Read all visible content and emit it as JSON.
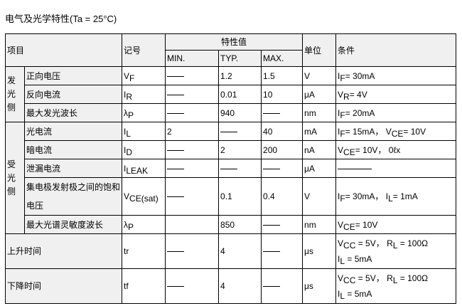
{
  "title": "电气及光学特性(Ta = 25°C)",
  "header": {
    "item": "项目",
    "symbol": "记号",
    "characteristic": "特性值",
    "min": "MIN.",
    "typ": "TYP.",
    "max": "MAX.",
    "unit": "单位",
    "condition": "条件"
  },
  "groups": [
    {
      "label": "发光侧",
      "rows": [
        {
          "item": "正向电压",
          "symbol": [
            {
              "t": "V"
            },
            {
              "s": "F"
            }
          ],
          "min": "—",
          "typ": "1.2",
          "max": "1.5",
          "unit": "V",
          "cond": [
            [
              {
                "t": "I"
              },
              {
                "s": "F"
              },
              {
                "t": "= 30mA"
              }
            ]
          ]
        },
        {
          "item": "反向电流",
          "symbol": [
            {
              "t": "I"
            },
            {
              "s": "R"
            }
          ],
          "min": "—",
          "typ": "0.01",
          "max": "10",
          "unit": "μA",
          "cond": [
            [
              {
                "t": "V"
              },
              {
                "s": "R"
              },
              {
                "t": "= 4V"
              }
            ]
          ]
        },
        {
          "item": "最大发光波长",
          "symbol": [
            {
              "t": "λ"
            },
            {
              "s": "P"
            }
          ],
          "min": "—",
          "typ": "940",
          "max": "—",
          "unit": "nm",
          "cond": [
            [
              {
                "t": "I"
              },
              {
                "s": "F"
              },
              {
                "t": "= 20mA"
              }
            ]
          ]
        }
      ]
    },
    {
      "label": "受光侧",
      "rows": [
        {
          "item": "光电流",
          "symbol": [
            {
              "t": "I"
            },
            {
              "s": "L"
            }
          ],
          "min": "2",
          "typ": "—",
          "max": "40",
          "unit": "mA",
          "cond": [
            [
              {
                "t": "I"
              },
              {
                "s": "F"
              },
              {
                "t": "= 15mA，  V"
              },
              {
                "s": "CE"
              },
              {
                "t": "= 10V"
              }
            ]
          ]
        },
        {
          "item": "暗电流",
          "symbol": [
            {
              "t": "I"
            },
            {
              "s": "D"
            }
          ],
          "min": "—",
          "typ": "2",
          "max": "200",
          "unit": "nA",
          "cond": [
            [
              {
                "t": "V"
              },
              {
                "s": "CE"
              },
              {
                "t": "= 10V，  0ℓx"
              }
            ]
          ]
        },
        {
          "item": "泄漏电流",
          "symbol": [
            {
              "t": "I"
            },
            {
              "s": "LEAK"
            }
          ],
          "min": "—",
          "typ": "—",
          "max": "—",
          "unit": "μA",
          "cond": "longdash"
        },
        {
          "item": "集电极发射极之间的饱和电压",
          "symbol": [
            {
              "t": "V"
            },
            {
              "s": "CE(sat)"
            }
          ],
          "min": "—",
          "typ": "0.1",
          "max": "0.4",
          "unit": "V",
          "cond": [
            [
              {
                "t": "I"
              },
              {
                "s": "F"
              },
              {
                "t": "= 30mA，  I"
              },
              {
                "s": "L"
              },
              {
                "t": "= 1mA"
              }
            ]
          ]
        },
        {
          "item": "最大光谱灵敏度波长",
          "symbol": [
            {
              "t": "λ"
            },
            {
              "s": "P"
            }
          ],
          "min": "",
          "typ": "850",
          "max": "—",
          "unit": "nm",
          "cond": [
            [
              {
                "t": "V"
              },
              {
                "s": "CE"
              },
              {
                "t": "= 10V"
              }
            ]
          ]
        }
      ]
    }
  ],
  "timing": [
    {
      "item": "上升时间",
      "symbol": [
        {
          "t": "tr"
        }
      ],
      "min": "—",
      "typ": "4",
      "max": "—",
      "unit": "μs",
      "cond": [
        [
          {
            "t": "V"
          },
          {
            "s": "CC"
          },
          {
            "t": " = 5V，  R"
          },
          {
            "s": "L"
          },
          {
            "t": " = 100Ω"
          }
        ],
        [
          {
            "t": "I"
          },
          {
            "s": "L"
          },
          {
            "t": " = 5mA"
          }
        ]
      ]
    },
    {
      "item": "下降时间",
      "symbol": [
        {
          "t": "tf"
        }
      ],
      "min": "—",
      "typ": "4",
      "max": "—",
      "unit": "μs",
      "cond": [
        [
          {
            "t": "V"
          },
          {
            "s": "CC"
          },
          {
            "t": " = 5V，  R"
          },
          {
            "s": "L"
          },
          {
            "t": " = 100Ω"
          }
        ],
        [
          {
            "t": "I"
          },
          {
            "s": "L"
          },
          {
            "t": " = 5mA"
          }
        ]
      ]
    }
  ]
}
